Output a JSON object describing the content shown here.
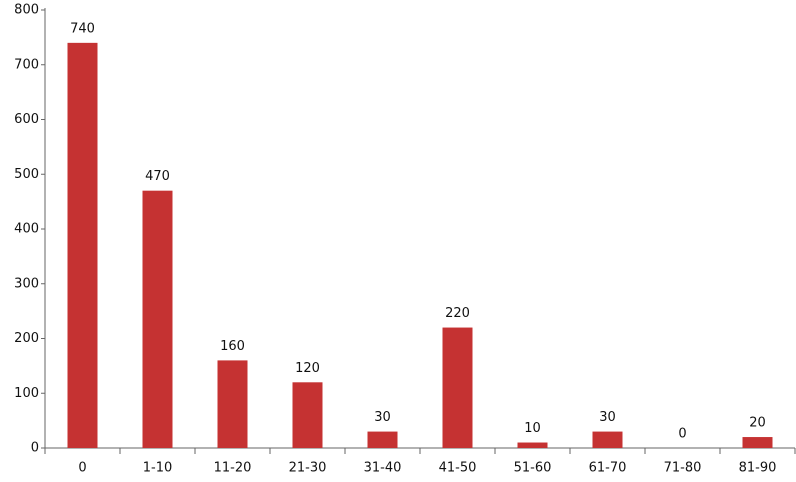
{
  "chart_data": {
    "type": "bar",
    "categories": [
      "0",
      "1-10",
      "11-20",
      "21-30",
      "31-40",
      "41-50",
      "51-60",
      "61-70",
      "71-80",
      "81-90"
    ],
    "values": [
      740,
      470,
      160,
      120,
      30,
      220,
      10,
      30,
      0,
      20
    ],
    "color": "#c53232",
    "ylim": [
      0,
      800
    ],
    "yticks": [
      0,
      100,
      200,
      300,
      400,
      500,
      600,
      700,
      800
    ],
    "grid": false
  }
}
